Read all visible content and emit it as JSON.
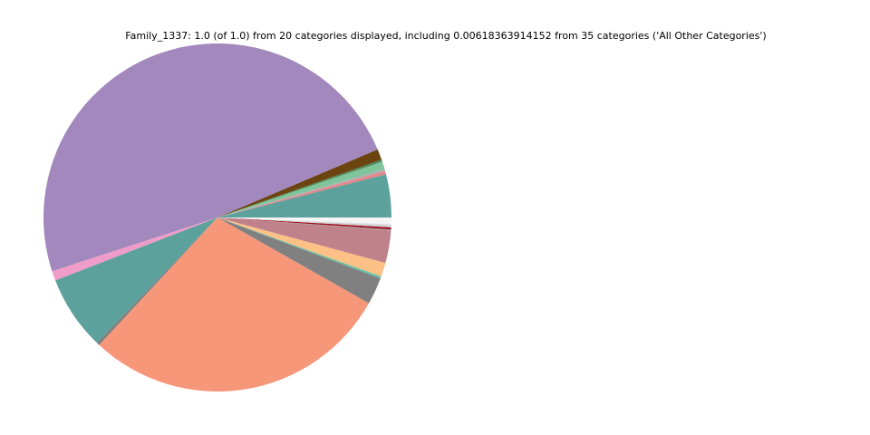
{
  "chart_data": {
    "type": "pie",
    "title": "Family_1337: 1.0 (of 1.0) from 20 categories displayed, including 0.00618363914152 from 35 categories ('All Other Categories')",
    "values": [
      0.04,
      0.003,
      0.002,
      0.007,
      0.002,
      0.01,
      0.486,
      0.009,
      0.069,
      0.003,
      0.287,
      0.025,
      0.002,
      0.013,
      0.03,
      0.001,
      0.002,
      0.002,
      0.001,
      0.006
    ],
    "colors": [
      "#5da19d",
      "#e8858a",
      "#b0b0b0",
      "#7fc49a",
      "#4d8a5a",
      "#6b4410",
      "#a288bd",
      "#f09cc8",
      "#5da19d",
      "#808080",
      "#f7977a",
      "#808080",
      "#66c2a5",
      "#fdc086",
      "#bf818a",
      "#a0a0a0",
      "#a01020",
      "#d0d0d0",
      "#e0e0e0",
      "#f5f5f5"
    ]
  }
}
